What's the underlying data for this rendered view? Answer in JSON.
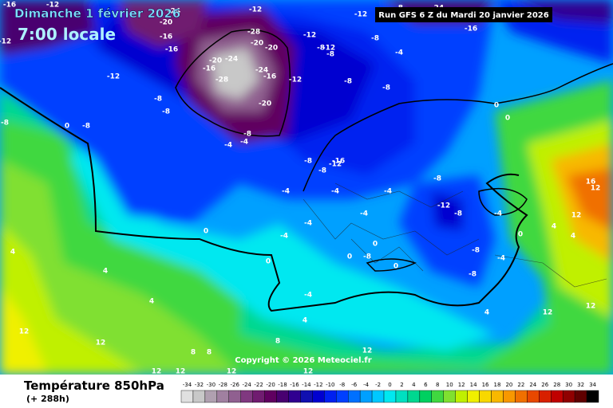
{
  "header": {
    "title": "Dimanche 1 février 2026",
    "time": "7:00 locale",
    "run": "Run GFS 6 Z du Mardi 20 janvier 2026"
  },
  "copyright": "Copyright © 2026 Meteociel.fr",
  "legend": {
    "title": "Température 850hPa",
    "lead": "(+ 288h)",
    "values": [
      -34,
      -32,
      -30,
      -28,
      -26,
      -24,
      -22,
      -20,
      -18,
      -16,
      -14,
      -12,
      -10,
      -8,
      -6,
      -4,
      -2,
      0,
      2,
      4,
      6,
      8,
      10,
      12,
      14,
      16,
      18,
      20,
      22,
      24,
      26,
      28,
      30,
      32,
      34
    ],
    "colors": [
      "#e0e0e0",
      "#c8c8c8",
      "#b0a0b0",
      "#a080a0",
      "#906090",
      "#803880",
      "#701c70",
      "#600060",
      "#480070",
      "#300090",
      "#1010b0",
      "#0000d0",
      "#0020f0",
      "#0040ff",
      "#0070ff",
      "#00a0ff",
      "#00c8ff",
      "#00e8f0",
      "#00e0c0",
      "#00d890",
      "#00d060",
      "#40d840",
      "#80e030",
      "#c0f000",
      "#f0f000",
      "#f8d800",
      "#f8b800",
      "#f89800",
      "#f07000",
      "#e84800",
      "#d82000",
      "#c00000",
      "#900000",
      "#600000",
      "#000000"
    ]
  },
  "map_labels": [
    -16,
    -12,
    -24,
    -20,
    -16,
    -16,
    -12,
    -12,
    -8,
    -12,
    -28,
    -20,
    -20,
    -20,
    -24,
    -16,
    -28,
    -24,
    -16,
    -20,
    -12,
    -12,
    -8,
    -12,
    -8,
    -12,
    -8,
    -8,
    -4,
    -8,
    -8,
    -16,
    -24,
    0,
    0,
    -8,
    0,
    -8,
    -4,
    -4,
    -8,
    -8,
    -12,
    -16,
    -4,
    -4,
    -4,
    -8,
    -12,
    -8,
    -8,
    -4,
    -4,
    -4,
    -4,
    0,
    0,
    0,
    0,
    -8,
    -8,
    -4,
    0,
    -8,
    0,
    4,
    4,
    12,
    16,
    12,
    4,
    4,
    4,
    -4,
    4,
    4,
    12,
    12,
    12,
    8,
    8,
    8,
    12,
    12,
    12,
    12,
    12,
    -8,
    12
  ]
}
